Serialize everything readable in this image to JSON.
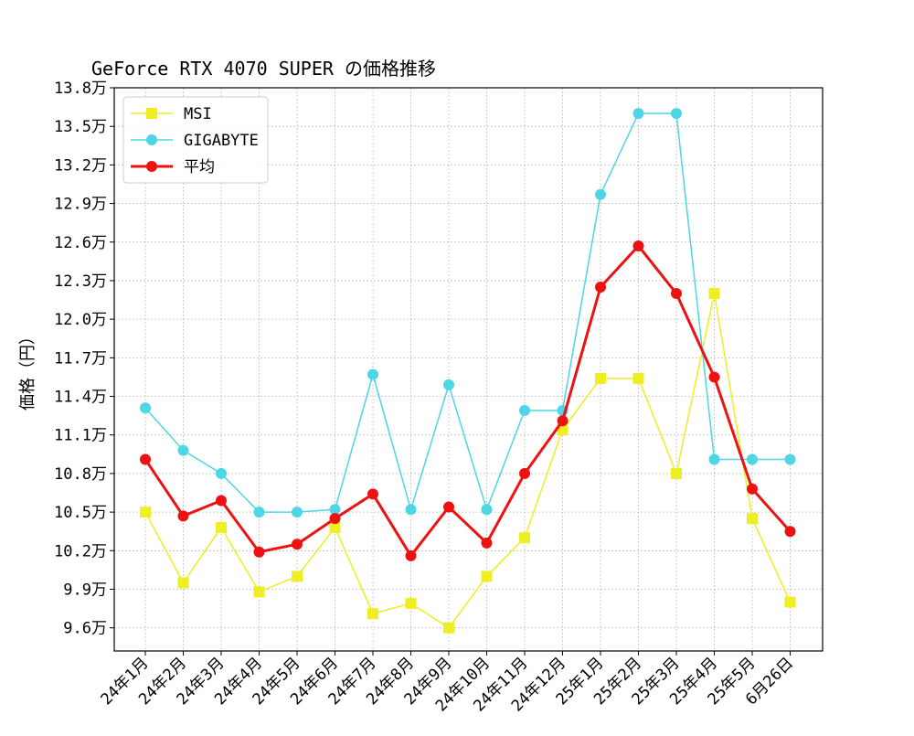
{
  "chart_data": {
    "type": "line",
    "title": "GeForce RTX 4070 SUPER の価格推移",
    "xlabel": "",
    "ylabel": "価格（円）",
    "categories": [
      "24年1月",
      "24年2月",
      "24年3月",
      "24年4月",
      "24年5月",
      "24年6月",
      "24年7月",
      "24年8月",
      "24年9月",
      "24年10月",
      "24年11月",
      "24年12月",
      "25年1月",
      "25年2月",
      "25年3月",
      "25年4月",
      "25年5月",
      "6月26日"
    ],
    "ylim": [
      9.42,
      13.8
    ],
    "yticks": [
      9.6,
      9.9,
      10.2,
      10.5,
      10.8,
      11.1,
      11.4,
      11.7,
      12.0,
      12.3,
      12.6,
      12.9,
      13.2,
      13.5,
      13.8
    ],
    "ytick_labels": [
      "9.6万",
      "9.9万",
      "10.2万",
      "10.5万",
      "10.8万",
      "11.1万",
      "11.4万",
      "11.7万",
      "12.0万",
      "12.3万",
      "12.6万",
      "12.9万",
      "13.2万",
      "13.5万",
      "13.8万"
    ],
    "grid": true,
    "legend_position": "top-left",
    "series": [
      {
        "name": "MSI",
        "color": "#eeee22",
        "marker": "square",
        "values": [
          10.5,
          9.95,
          10.38,
          9.88,
          10.0,
          10.38,
          9.71,
          9.79,
          9.6,
          10.0,
          10.3,
          11.14,
          11.54,
          11.54,
          10.8,
          12.2,
          10.45,
          9.8
        ]
      },
      {
        "name": "GIGABYTE",
        "color": "#4dd6e6",
        "marker": "circle",
        "values": [
          11.31,
          10.98,
          10.8,
          10.5,
          10.5,
          10.52,
          11.57,
          10.52,
          11.49,
          10.52,
          11.29,
          11.29,
          12.97,
          13.6,
          13.6,
          10.91,
          10.91,
          10.91
        ]
      },
      {
        "name": "平均",
        "color": "#ee1111",
        "marker": "circle",
        "values": [
          10.91,
          10.47,
          10.59,
          10.19,
          10.25,
          10.45,
          10.64,
          10.16,
          10.54,
          10.26,
          10.8,
          11.21,
          12.25,
          12.57,
          12.2,
          11.55,
          10.68,
          10.35
        ]
      }
    ]
  }
}
